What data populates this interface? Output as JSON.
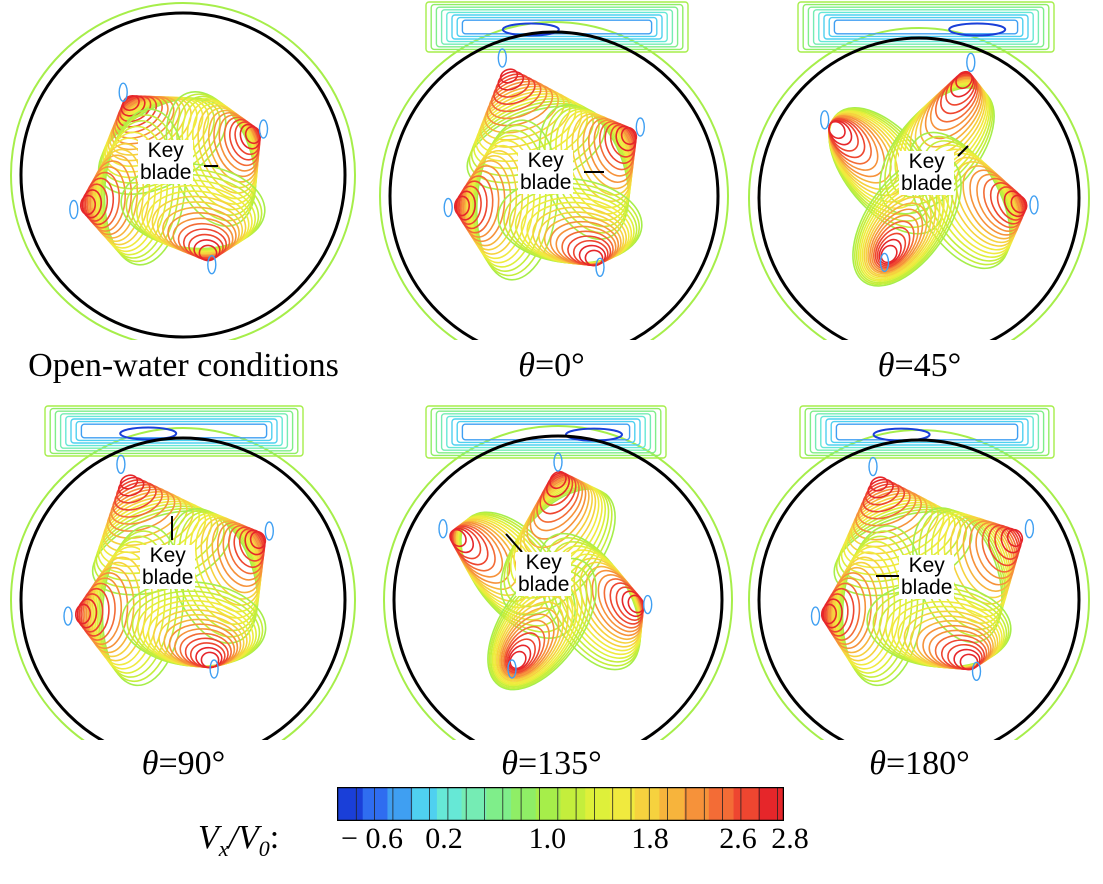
{
  "figure": {
    "panels": [
      {
        "id": "open",
        "label": "Open-water conditions",
        "italic_theta": false,
        "hull": false,
        "key_text": [
          "Key",
          "blade"
        ]
      },
      {
        "id": "t0",
        "label_prefix": "θ",
        "label": "=0°",
        "italic_theta": true,
        "hull": true,
        "key_text": [
          "Key",
          "blade"
        ]
      },
      {
        "id": "t45",
        "label_prefix": "θ",
        "label": "=45°",
        "italic_theta": true,
        "hull": true,
        "key_text": [
          "Key",
          "blade"
        ]
      },
      {
        "id": "t90",
        "label_prefix": "θ",
        "label": "=90°",
        "italic_theta": true,
        "hull": true,
        "key_text": [
          "Key",
          "blade"
        ]
      },
      {
        "id": "t135",
        "label_prefix": "θ",
        "label": "=135°",
        "italic_theta": true,
        "hull": true,
        "key_text": [
          "Key",
          "blade"
        ]
      },
      {
        "id": "t180",
        "label_prefix": "θ",
        "label": "=180°",
        "italic_theta": true,
        "hull": true,
        "key_text": [
          "Key",
          "blade"
        ]
      }
    ],
    "colorbar": {
      "title_main": "V",
      "title_sub1": "x",
      "title_slash": "/V",
      "title_sub2": "0",
      "title_colon": ":",
      "min": -0.6,
      "max": 2.8,
      "tick_labels": [
        "− 0.6",
        "0.2",
        "1.0",
        "1.8",
        "2.6",
        "2.8"
      ],
      "tick_values": [
        -0.6,
        0.2,
        1.0,
        1.8,
        2.6,
        2.8
      ],
      "colors": [
        "#1a3fd8",
        "#2f6df0",
        "#3f9ff2",
        "#4fd0f0",
        "#66e8d6",
        "#75ecb4",
        "#7fee8a",
        "#8fee66",
        "#a6ee4a",
        "#c4ee3c",
        "#def03a",
        "#f0ea3e",
        "#f6d23e",
        "#f7b43c",
        "#f6923a",
        "#f36c36",
        "#ee4630",
        "#e6262a"
      ]
    },
    "colors": {
      "outline": "#000000",
      "background": "#ffffff"
    }
  }
}
